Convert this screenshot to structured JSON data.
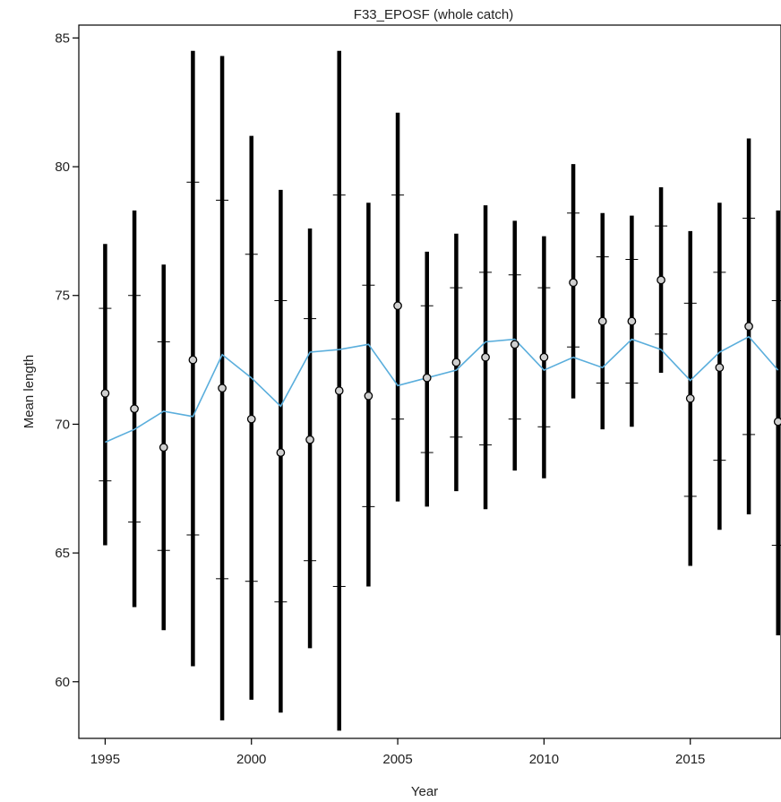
{
  "chart_data": {
    "type": "line",
    "title": "F33_EPOSF (whole catch)",
    "xlabel": "Year",
    "ylabel": "Mean length",
    "xlim": [
      1994.1,
      2018.1
    ],
    "ylim": [
      57.8,
      85.5
    ],
    "x_ticks": [
      1995,
      2000,
      2005,
      2010,
      2015
    ],
    "y_ticks": [
      60,
      65,
      70,
      75,
      80,
      85
    ],
    "grid": false,
    "legend": "none",
    "colors": {
      "trend_line": "#5aaedc",
      "error_bars": "#000000",
      "points_fill": "#d0d0d0"
    },
    "years": [
      1995,
      1996,
      1997,
      1998,
      1999,
      2000,
      2001,
      2002,
      2003,
      2004,
      2005,
      2006,
      2007,
      2008,
      2009,
      2010,
      2011,
      2012,
      2013,
      2014,
      2015,
      2016,
      2017,
      2018
    ],
    "series": [
      {
        "kind": "points",
        "values": [
          71.2,
          70.6,
          69.1,
          72.5,
          71.4,
          70.2,
          68.9,
          69.4,
          71.3,
          71.1,
          74.6,
          71.8,
          72.4,
          72.6,
          73.1,
          72.6,
          75.5,
          74.0,
          74.0,
          75.6,
          71.0,
          72.2,
          73.8,
          70.1
        ]
      },
      {
        "kind": "line",
        "values": [
          69.3,
          69.8,
          70.5,
          70.3,
          72.7,
          71.8,
          70.7,
          72.8,
          72.9,
          73.1,
          71.5,
          71.8,
          72.1,
          73.2,
          73.3,
          72.1,
          72.6,
          72.2,
          73.3,
          72.9,
          71.7,
          72.8,
          73.4,
          72.1
        ]
      },
      {
        "kind": "error_bars",
        "upper": [
          77.0,
          78.3,
          76.2,
          84.5,
          84.3,
          81.2,
          79.1,
          77.6,
          84.5,
          78.6,
          82.1,
          76.7,
          77.4,
          78.5,
          77.9,
          77.3,
          80.1,
          78.2,
          78.1,
          79.2,
          77.5,
          78.6,
          81.1,
          78.3
        ],
        "lower": [
          65.3,
          62.9,
          62.0,
          60.6,
          58.5,
          59.3,
          58.8,
          61.3,
          58.1,
          63.7,
          67.0,
          66.8,
          67.4,
          66.7,
          68.2,
          67.9,
          71.0,
          69.8,
          69.9,
          72.0,
          64.5,
          65.9,
          66.5,
          61.8
        ],
        "upper_inner": [
          74.5,
          75.0,
          73.2,
          79.4,
          78.7,
          76.6,
          74.8,
          74.1,
          78.9,
          75.4,
          78.9,
          74.6,
          75.3,
          75.9,
          75.8,
          75.3,
          78.2,
          76.5,
          76.4,
          77.7,
          74.7,
          75.9,
          78.0,
          74.8
        ],
        "lower_inner": [
          67.8,
          66.2,
          65.1,
          65.7,
          64.0,
          63.9,
          63.1,
          64.7,
          63.7,
          66.8,
          70.2,
          68.9,
          69.5,
          69.2,
          70.2,
          69.9,
          73.0,
          71.6,
          71.6,
          73.5,
          67.2,
          68.6,
          69.6,
          65.3
        ]
      }
    ]
  }
}
